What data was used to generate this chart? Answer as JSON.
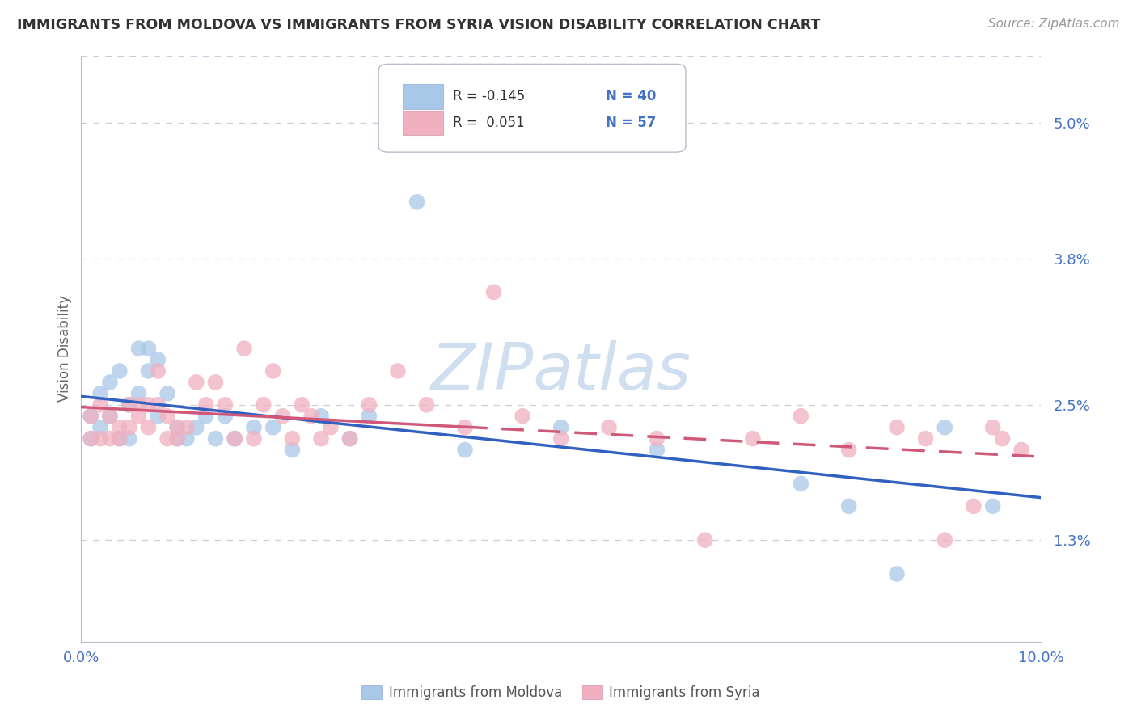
{
  "title": "IMMIGRANTS FROM MOLDOVA VS IMMIGRANTS FROM SYRIA VISION DISABILITY CORRELATION CHART",
  "source": "Source: ZipAtlas.com",
  "ylabel": "Vision Disability",
  "x_min": 0.0,
  "x_max": 0.1,
  "y_min": 0.004,
  "y_max": 0.056,
  "yticks": [
    0.013,
    0.025,
    0.038,
    0.05
  ],
  "ytick_labels": [
    "1.3%",
    "2.5%",
    "3.8%",
    "5.0%"
  ],
  "xticks": [
    0.0,
    0.01,
    0.02,
    0.03,
    0.04,
    0.05,
    0.06,
    0.07,
    0.08,
    0.09,
    0.1
  ],
  "xtick_labels": [
    "0.0%",
    "",
    "",
    "",
    "",
    "",
    "",
    "",
    "",
    "",
    "10.0%"
  ],
  "moldova_color": "#A8C8E8",
  "syria_color": "#F0B0C0",
  "moldova_line_color": "#3060C0",
  "syria_line_color": "#D05878",
  "legend_r_moldova": "R = -0.145",
  "legend_n_moldova": "N = 40",
  "legend_r_syria": "R =  0.051",
  "legend_n_syria": "N = 57",
  "legend_label_moldova": "Immigrants from Moldova",
  "legend_label_syria": "Immigrants from Syria",
  "moldova_x": [
    0.001,
    0.001,
    0.002,
    0.002,
    0.003,
    0.003,
    0.004,
    0.004,
    0.005,
    0.005,
    0.006,
    0.006,
    0.007,
    0.007,
    0.008,
    0.008,
    0.009,
    0.01,
    0.01,
    0.011,
    0.012,
    0.013,
    0.014,
    0.015,
    0.016,
    0.018,
    0.02,
    0.022,
    0.025,
    0.028,
    0.03,
    0.035,
    0.04,
    0.05,
    0.06,
    0.075,
    0.08,
    0.085,
    0.09,
    0.095
  ],
  "moldova_y": [
    0.024,
    0.022,
    0.023,
    0.026,
    0.024,
    0.027,
    0.022,
    0.028,
    0.025,
    0.022,
    0.03,
    0.026,
    0.03,
    0.028,
    0.029,
    0.024,
    0.026,
    0.023,
    0.022,
    0.022,
    0.023,
    0.024,
    0.022,
    0.024,
    0.022,
    0.023,
    0.023,
    0.021,
    0.024,
    0.022,
    0.024,
    0.043,
    0.021,
    0.023,
    0.021,
    0.018,
    0.016,
    0.01,
    0.023,
    0.016
  ],
  "syria_x": [
    0.001,
    0.001,
    0.002,
    0.002,
    0.003,
    0.003,
    0.004,
    0.004,
    0.005,
    0.005,
    0.006,
    0.006,
    0.007,
    0.007,
    0.008,
    0.008,
    0.009,
    0.009,
    0.01,
    0.01,
    0.011,
    0.012,
    0.013,
    0.014,
    0.015,
    0.016,
    0.017,
    0.018,
    0.019,
    0.02,
    0.021,
    0.022,
    0.023,
    0.024,
    0.025,
    0.026,
    0.028,
    0.03,
    0.033,
    0.036,
    0.04,
    0.043,
    0.046,
    0.05,
    0.055,
    0.06,
    0.065,
    0.07,
    0.075,
    0.08,
    0.085,
    0.088,
    0.09,
    0.093,
    0.095,
    0.096,
    0.098
  ],
  "syria_y": [
    0.022,
    0.024,
    0.025,
    0.022,
    0.022,
    0.024,
    0.023,
    0.022,
    0.025,
    0.023,
    0.025,
    0.024,
    0.023,
    0.025,
    0.025,
    0.028,
    0.022,
    0.024,
    0.023,
    0.022,
    0.023,
    0.027,
    0.025,
    0.027,
    0.025,
    0.022,
    0.03,
    0.022,
    0.025,
    0.028,
    0.024,
    0.022,
    0.025,
    0.024,
    0.022,
    0.023,
    0.022,
    0.025,
    0.028,
    0.025,
    0.023,
    0.035,
    0.024,
    0.022,
    0.023,
    0.022,
    0.013,
    0.022,
    0.024,
    0.021,
    0.023,
    0.022,
    0.013,
    0.016,
    0.023,
    0.022,
    0.021
  ],
  "background_color": "#FFFFFF",
  "grid_color": "#CCCCDD",
  "axis_color": "#4472C4",
  "watermark": "ZIPatlas",
  "watermark_color": "#D0DFF0"
}
